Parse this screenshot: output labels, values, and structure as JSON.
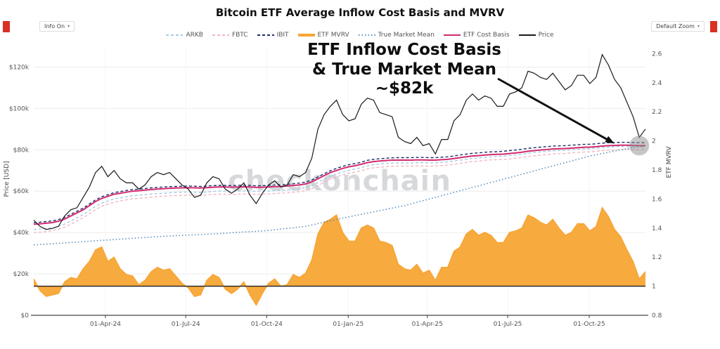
{
  "header": {
    "title": "Bitcoin ETF Average Inflow Cost Basis and MVRV"
  },
  "controls": {
    "info_button": "Info On",
    "zoom_button": "Default Zoom",
    "caret": "▾"
  },
  "annotation": {
    "lines": [
      "ETF Inflow Cost Basis",
      "& True Market Mean",
      "~$82k"
    ]
  },
  "watermark": "checkonchain",
  "chart_data": {
    "type": "line",
    "title": "Bitcoin ETF Average Inflow Cost Basis and MVRV",
    "grid": true,
    "legend_position": "top-center",
    "left_axis": {
      "title": "Price [USD]",
      "lim": [
        0,
        130
      ],
      "ticks": [
        {
          "v": 0,
          "label": "$0"
        },
        {
          "v": 20,
          "label": "$20k"
        },
        {
          "v": 40,
          "label": "$40k"
        },
        {
          "v": 60,
          "label": "$60k"
        },
        {
          "v": 80,
          "label": "$80k"
        },
        {
          "v": 100,
          "label": "$100k"
        },
        {
          "v": 120,
          "label": "$120k"
        }
      ]
    },
    "right_axis": {
      "title": "ETF MVRV",
      "lim": [
        0.8,
        2.65
      ],
      "ticks": [
        {
          "v": 0.8,
          "label": "0.8"
        },
        {
          "v": 1.0,
          "label": "1"
        },
        {
          "v": 1.2,
          "label": "1.2"
        },
        {
          "v": 1.4,
          "label": "1.4"
        },
        {
          "v": 1.6,
          "label": "1.6"
        },
        {
          "v": 1.8,
          "label": "1.8"
        },
        {
          "v": 2.0,
          "label": "2"
        },
        {
          "v": 2.2,
          "label": "2.2"
        },
        {
          "v": 2.4,
          "label": "2.4"
        },
        {
          "v": 2.6,
          "label": "2.6"
        }
      ]
    },
    "x_ticks": [
      {
        "pos": 11.6,
        "label": "01-Apr-24"
      },
      {
        "pos": 24.6,
        "label": "01-Jul-24"
      },
      {
        "pos": 37.7,
        "label": "01-Oct-24"
      },
      {
        "pos": 50.9,
        "label": "01-Jan-25"
      },
      {
        "pos": 63.7,
        "label": "01-Apr-25"
      },
      {
        "pos": 76.7,
        "label": "01-Jul-25"
      },
      {
        "pos": 89.9,
        "label": "01-Oct-25"
      }
    ],
    "baseline": {
      "axis": "right",
      "value": 1
    },
    "annotation_target": {
      "index": 94,
      "value": 83,
      "axis": "left"
    },
    "highlight_circle": {
      "index": 98,
      "value": 82,
      "axis": "left",
      "r": 14
    },
    "series": [
      {
        "name": "ARKB",
        "axis": "left",
        "type": "line",
        "color": "#a6cbe3",
        "width": 1.4,
        "dash": "4 3",
        "values": [
          41.5,
          41.7,
          42.0,
          42.3,
          43.0,
          44.1,
          45.6,
          47.1,
          48.6,
          50.6,
          52.7,
          54.2,
          55.3,
          56.3,
          56.8,
          57.3,
          57.8,
          58.0,
          58.3,
          58.6,
          58.8,
          59.0,
          59.2,
          59.4,
          59.5,
          59.6,
          59.5,
          59.4,
          59.6,
          59.9,
          60.0,
          60.0,
          59.9,
          60.0,
          60.1,
          60.0,
          59.9,
          60.0,
          60.1,
          60.3,
          60.4,
          60.6,
          60.9,
          61.2,
          61.7,
          62.7,
          64.2,
          65.8,
          67.3,
          68.3,
          69.3,
          70.1,
          70.7,
          71.4,
          72.2,
          72.8,
          73.1,
          73.3,
          73.5,
          73.6,
          73.6,
          73.6,
          73.7,
          73.8,
          73.7,
          73.7,
          73.9,
          74.2,
          74.6,
          75.0,
          75.4,
          75.8,
          76.1,
          76.4,
          76.6,
          76.8,
          76.9,
          77.2,
          77.5,
          77.8,
          78.3,
          78.7,
          79.0,
          79.2,
          79.5,
          79.7,
          79.8,
          80.0,
          80.2,
          80.4,
          80.6,
          80.8,
          81.1,
          81.3,
          81.5,
          81.6,
          81.6,
          81.5,
          81.4,
          81.4
        ]
      },
      {
        "name": "FBTC",
        "axis": "left",
        "type": "line",
        "color": "#f4b6c2",
        "width": 1.4,
        "dash": "4 3",
        "values": [
          40.0,
          40.2,
          40.5,
          40.9,
          41.6,
          42.6,
          44.1,
          45.6,
          47.1,
          49.1,
          51.1,
          52.7,
          53.7,
          54.7,
          55.3,
          55.8,
          56.3,
          56.5,
          56.8,
          57.1,
          57.4,
          57.6,
          57.8,
          57.9,
          58.0,
          58.1,
          58.0,
          58.0,
          58.2,
          58.4,
          58.5,
          58.5,
          58.4,
          58.5,
          58.7,
          58.6,
          58.4,
          58.5,
          58.7,
          58.9,
          59.0,
          59.2,
          59.5,
          59.7,
          60.2,
          61.2,
          62.8,
          64.3,
          65.8,
          66.9,
          67.9,
          68.7,
          69.2,
          69.9,
          70.8,
          71.3,
          71.6,
          71.8,
          72.0,
          72.1,
          72.1,
          72.1,
          72.2,
          72.2,
          72.1,
          72.2,
          72.4,
          72.6,
          73.0,
          73.5,
          73.9,
          74.3,
          74.5,
          74.9,
          75.1,
          75.2,
          75.3,
          75.6,
          76.0,
          76.3,
          76.8,
          77.1,
          77.4,
          77.7,
          78.0,
          78.1,
          78.2,
          78.5,
          78.7,
          78.9,
          79.0,
          79.3,
          79.6,
          79.8,
          79.9,
          80.1,
          80.1,
          80.1,
          80.0,
          80.2
        ]
      },
      {
        "name": "IBIT",
        "axis": "left",
        "type": "line",
        "color": "#1c2e6b",
        "width": 1.4,
        "dash": "4 3",
        "values": [
          44.8,
          45.0,
          45.3,
          45.6,
          46.3,
          47.3,
          48.8,
          50.3,
          51.8,
          53.8,
          55.8,
          57.3,
          58.3,
          59.3,
          59.8,
          60.3,
          60.8,
          61.0,
          61.3,
          61.6,
          61.8,
          62.0,
          62.2,
          62.3,
          62.4,
          62.5,
          62.4,
          62.3,
          62.5,
          62.7,
          62.8,
          62.8,
          62.7,
          62.8,
          62.9,
          62.8,
          62.6,
          62.7,
          62.8,
          63.0,
          63.1,
          63.3,
          63.6,
          63.9,
          64.4,
          65.4,
          66.9,
          68.4,
          69.9,
          71.0,
          72.0,
          72.8,
          73.3,
          74.0,
          74.9,
          75.4,
          75.7,
          75.9,
          76.1,
          76.2,
          76.2,
          76.2,
          76.3,
          76.3,
          76.2,
          76.2,
          76.4,
          76.6,
          77.0,
          77.5,
          77.9,
          78.3,
          78.5,
          78.8,
          79.0,
          79.1,
          79.3,
          79.6,
          79.9,
          80.2,
          80.7,
          81.0,
          81.3,
          81.5,
          81.8,
          81.9,
          82.0,
          82.2,
          82.4,
          82.6,
          82.7,
          82.9,
          83.2,
          83.4,
          83.5,
          83.6,
          83.6,
          83.5,
          83.4,
          83.4
        ]
      },
      {
        "name": "ETF MVRV",
        "axis": "right",
        "type": "area",
        "color": "#f7a534",
        "width": 1.5,
        "dash": "",
        "area_baseline": 1,
        "values": [
          1.05,
          0.97,
          0.93,
          0.94,
          0.95,
          1.03,
          1.06,
          1.05,
          1.12,
          1.17,
          1.25,
          1.27,
          1.17,
          1.2,
          1.12,
          1.08,
          1.07,
          1.01,
          1.04,
          1.1,
          1.13,
          1.11,
          1.12,
          1.07,
          1.02,
          0.99,
          0.93,
          0.94,
          1.04,
          1.08,
          1.06,
          0.98,
          0.95,
          0.98,
          1.03,
          0.94,
          0.87,
          0.95,
          1.02,
          1.05,
          1.0,
          1.01,
          1.08,
          1.06,
          1.09,
          1.18,
          1.36,
          1.44,
          1.46,
          1.49,
          1.37,
          1.31,
          1.31,
          1.4,
          1.42,
          1.4,
          1.31,
          1.3,
          1.28,
          1.15,
          1.12,
          1.11,
          1.15,
          1.09,
          1.11,
          1.04,
          1.13,
          1.13,
          1.24,
          1.27,
          1.36,
          1.39,
          1.35,
          1.37,
          1.35,
          1.3,
          1.3,
          1.37,
          1.38,
          1.4,
          1.49,
          1.47,
          1.44,
          1.42,
          1.46,
          1.4,
          1.35,
          1.37,
          1.43,
          1.43,
          1.38,
          1.41,
          1.54,
          1.48,
          1.39,
          1.34,
          1.25,
          1.17,
          1.05,
          1.1
        ]
      },
      {
        "name": "True Market Mean",
        "axis": "left",
        "type": "line",
        "color": "#5b8fc0",
        "width": 1.6,
        "dash": "1.5 3",
        "values": [
          34.0,
          34.2,
          34.4,
          34.6,
          34.8,
          35.0,
          35.2,
          35.4,
          35.6,
          35.8,
          36.0,
          36.2,
          36.4,
          36.6,
          36.8,
          37.0,
          37.2,
          37.4,
          37.6,
          37.8,
          38.0,
          38.2,
          38.3,
          38.5,
          38.6,
          38.8,
          38.9,
          39.0,
          39.2,
          39.3,
          39.5,
          39.7,
          39.9,
          40.1,
          40.3,
          40.4,
          40.6,
          40.8,
          41.0,
          41.3,
          41.7,
          42.0,
          42.3,
          42.7,
          43.0,
          43.7,
          44.3,
          45.0,
          45.7,
          46.3,
          47.0,
          47.6,
          48.2,
          48.8,
          49.4,
          50.0,
          50.6,
          51.2,
          51.8,
          52.4,
          53.0,
          53.8,
          54.6,
          55.4,
          56.2,
          57.0,
          57.8,
          58.6,
          59.4,
          60.2,
          61.0,
          61.8,
          62.6,
          63.4,
          64.2,
          65.0,
          65.8,
          66.6,
          67.4,
          68.2,
          69.0,
          69.8,
          70.6,
          71.4,
          72.2,
          73.0,
          73.8,
          74.6,
          75.4,
          76.2,
          77.0,
          77.6,
          78.2,
          78.8,
          79.4,
          80.0,
          80.5,
          81.0,
          81.5,
          82.0
        ]
      },
      {
        "name": "ETF Cost Basis",
        "axis": "left",
        "type": "line",
        "color": "#d12a6e",
        "width": 2,
        "dash": "",
        "values": [
          44.0,
          44.2,
          44.5,
          44.8,
          45.5,
          46.5,
          48.0,
          49.5,
          51.0,
          53.0,
          55.0,
          56.5,
          57.5,
          58.5,
          59.0,
          59.5,
          60.0,
          60.2,
          60.5,
          60.8,
          61.0,
          61.2,
          61.4,
          61.5,
          61.6,
          61.7,
          61.6,
          61.5,
          61.7,
          61.9,
          62.0,
          62.0,
          61.9,
          62.0,
          62.1,
          62.0,
          61.8,
          61.9,
          62.0,
          62.2,
          62.3,
          62.5,
          62.8,
          63.0,
          63.5,
          64.5,
          66.0,
          67.5,
          69.0,
          70.0,
          71.0,
          71.8,
          72.3,
          73.0,
          73.8,
          74.3,
          74.6,
          74.8,
          75.0,
          75.0,
          75.0,
          75.0,
          75.1,
          75.1,
          75.0,
          75.0,
          75.2,
          75.4,
          75.8,
          76.2,
          76.6,
          77.0,
          77.2,
          77.5,
          77.7,
          77.8,
          77.9,
          78.2,
          78.5,
          78.8,
          79.3,
          79.6,
          79.9,
          80.1,
          80.4,
          80.5,
          80.6,
          80.8,
          81.0,
          81.2,
          81.3,
          81.5,
          81.8,
          82.0,
          82.1,
          82.2,
          82.2,
          82.1,
          82.0,
          82.0
        ]
      },
      {
        "name": "Price",
        "axis": "left",
        "type": "line",
        "color": "#1a1a1a",
        "width": 1.2,
        "dash": "",
        "values": [
          46,
          43,
          41.5,
          42,
          43,
          48,
          51,
          52,
          57,
          62,
          69,
          72,
          67,
          70,
          66,
          64,
          64,
          61,
          63,
          67,
          69,
          68,
          69,
          66,
          63,
          61,
          57,
          58,
          64,
          67,
          66,
          61,
          59,
          61,
          64,
          58,
          54,
          59,
          63,
          65,
          62,
          63,
          68,
          67,
          69,
          76,
          90,
          97,
          101,
          104,
          97,
          94,
          95,
          102,
          105,
          104,
          98,
          97,
          96,
          86,
          84,
          83,
          86,
          82,
          83,
          78,
          85,
          85,
          94,
          97,
          104,
          107,
          104,
          106,
          105,
          101,
          101,
          107,
          108,
          110,
          118,
          117,
          115,
          114,
          117,
          113,
          109,
          111,
          116,
          116,
          112,
          115,
          126,
          121,
          114,
          110,
          103,
          96,
          86,
          90
        ]
      }
    ]
  }
}
